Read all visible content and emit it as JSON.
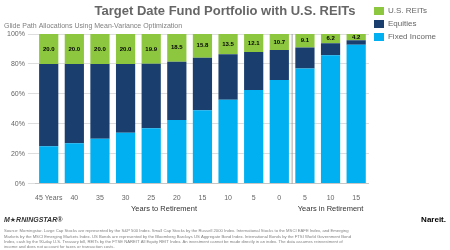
{
  "chart_data": {
    "type": "bar",
    "stacked": true,
    "title": "Target Date Fund Portfolio with U.S. REITs",
    "subtitle": "Glide Path Allocations Using Mean-Variance Optimization",
    "categories": [
      "45 Years",
      "40",
      "35",
      "30",
      "25",
      "20",
      "15",
      "10",
      "5",
      "0",
      "5",
      "10",
      "15"
    ],
    "series": [
      {
        "name": "Fixed Income",
        "color": "#00b0f0",
        "values": [
          25.0,
          27.0,
          30.0,
          34.0,
          37.0,
          42.5,
          49.0,
          56.0,
          62.5,
          69.2,
          76.9,
          85.8,
          92.8
        ]
      },
      {
        "name": "Equities",
        "color": "#1a3f6f",
        "values": [
          55.0,
          53.0,
          50.0,
          46.0,
          43.1,
          39.0,
          35.2,
          30.5,
          25.4,
          20.1,
          14.0,
          8.0,
          3.0
        ]
      },
      {
        "name": "U.S. REITs",
        "color": "#8dc63f",
        "values": [
          20.0,
          20.0,
          20.0,
          20.0,
          19.9,
          18.5,
          15.8,
          13.5,
          12.1,
          10.7,
          9.1,
          6.2,
          4.2
        ],
        "data_labels": true,
        "value_labels": [
          "20.0",
          "20.0",
          "20.0",
          "20.0",
          "19.9",
          "18.5",
          "15.8",
          "13.5",
          "12.1",
          "10.7",
          "9.1",
          "6.2",
          "4.2"
        ]
      }
    ],
    "ylim": [
      0,
      100
    ],
    "yticks": [
      {
        "value": 0,
        "label": "0%"
      },
      {
        "value": 20,
        "label": "20%"
      },
      {
        "value": 40,
        "label": "40%"
      },
      {
        "value": 60,
        "label": "60%"
      },
      {
        "value": 80,
        "label": "80%"
      },
      {
        "value": 100,
        "label": "100%"
      }
    ],
    "grid": true,
    "legend": "right",
    "annotations": [
      "Years to Retirement",
      "Years in Retirement",
      "M★RNINGSTAR®",
      "Nareit.",
      "Source: Morningstar. Large Cap Stocks are represented by the S&P 500 Index. Small Cap Stocks by the Russell 2000 Index. International Stocks to the MSCI EAFE Index, and Emerging\nMarkets by the MSCI Emerging Markets Index. US Bonds are represented by the Bloomberg Barclays US Aggregate Bond Index. International Bonds by the FTSI World Government Bond\nIndex, cash by the 90-day U.S. Treasury bill, REITs by the FTSE NAREIT All Equity REIT Index. An investment cannot be made directly in an index. The data assumes reinvestment of\nincome and does not account for taxes or transaction costs."
    ]
  }
}
